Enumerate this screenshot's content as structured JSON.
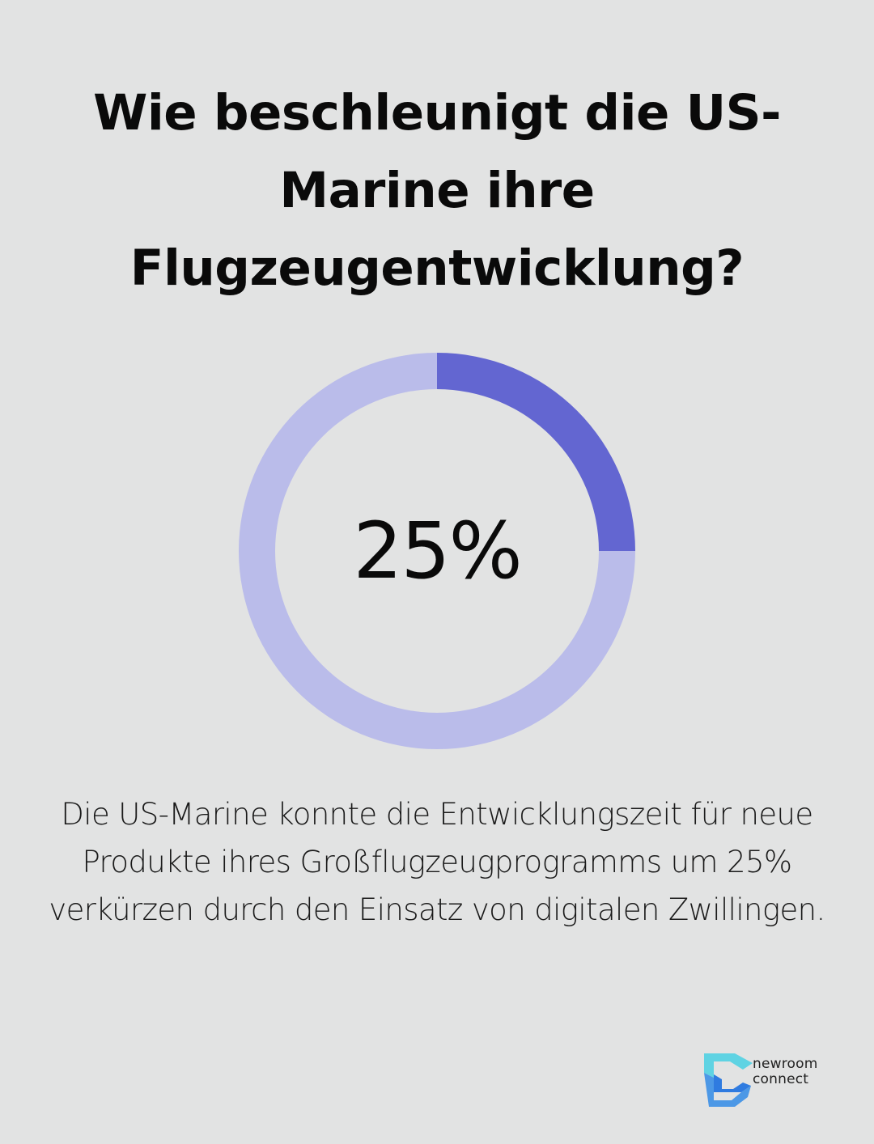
{
  "page": {
    "title": "Wie beschleunigt die US-Marine ihre Flugzeugentwicklung?",
    "description": "Die US-Marine konnte die Entwicklungszeit für neue Produkte ihres Großflugzeugprogramms um 25% verkürzen durch den Einsatz von digitalen Zwillingen."
  },
  "chart_data": {
    "type": "pie",
    "style": "donut",
    "value_label": "25%",
    "values": [
      25,
      75
    ],
    "colors": {
      "value": "#6366d1",
      "remainder": "#babcea"
    }
  },
  "brand": {
    "line1": "newroom",
    "line2": "connect",
    "colors": {
      "primary": "#2f7be0",
      "secondary": "#5fd3e3"
    }
  },
  "colors": {
    "background": "#e2e3e3",
    "text": "#0a0a0a"
  }
}
